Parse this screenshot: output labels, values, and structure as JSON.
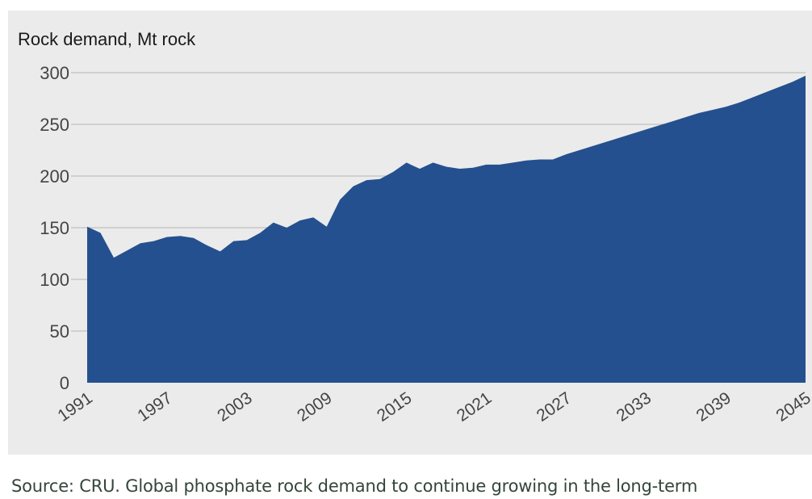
{
  "caption": "Source: CRU. Global phosphate rock demand to continue growing in the long-term",
  "chart_data": {
    "type": "area",
    "title": "Rock demand, Mt rock",
    "xlabel": "",
    "ylabel": "",
    "ylim": [
      0,
      300
    ],
    "xlim": [
      1991,
      2045
    ],
    "yticks": [
      0,
      50,
      100,
      150,
      200,
      250,
      300
    ],
    "xticks": [
      "1991",
      "1997",
      "2003",
      "2009",
      "2015",
      "2021",
      "2027",
      "2033",
      "2039",
      "2045"
    ],
    "grid": true,
    "color": "#24508f",
    "x": [
      1991,
      1992,
      1993,
      1994,
      1995,
      1996,
      1997,
      1998,
      1999,
      2000,
      2001,
      2002,
      2003,
      2004,
      2005,
      2006,
      2007,
      2008,
      2009,
      2010,
      2011,
      2012,
      2013,
      2014,
      2015,
      2016,
      2017,
      2018,
      2019,
      2020,
      2021,
      2022,
      2023,
      2024,
      2025,
      2026,
      2027,
      2028,
      2029,
      2030,
      2031,
      2032,
      2033,
      2034,
      2035,
      2036,
      2037,
      2038,
      2039,
      2040,
      2041,
      2042,
      2043,
      2044,
      2045
    ],
    "values": [
      151,
      145,
      121,
      128,
      135,
      137,
      141,
      142,
      140,
      133,
      127,
      137,
      138,
      145,
      155,
      150,
      157,
      160,
      151,
      177,
      190,
      196,
      197,
      204,
      213,
      207,
      213,
      209,
      207,
      208,
      211,
      211,
      213,
      215,
      216,
      216,
      221,
      225,
      229,
      233,
      237,
      241,
      245,
      249,
      253,
      257,
      261,
      264,
      267,
      271,
      276,
      281,
      286,
      291,
      297
    ]
  }
}
